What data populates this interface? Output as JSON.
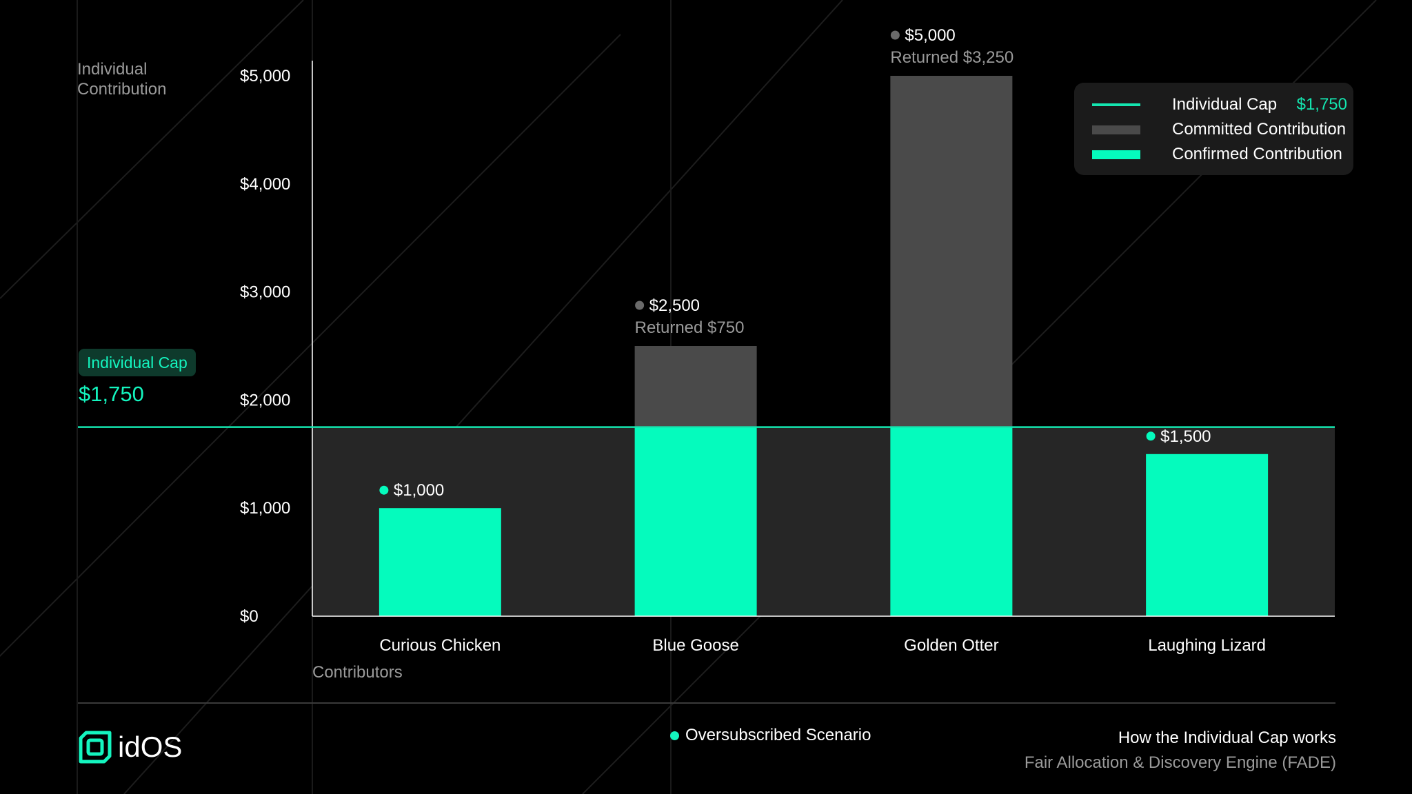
{
  "chart_data": {
    "type": "bar",
    "title": "How the Individual Cap works",
    "subtitle": "Fair Allocation & Discovery Engine (FADE)",
    "xlabel": "Contributors",
    "ylabel": "Individual Contribution",
    "ylim": [
      0,
      5000
    ],
    "ytick_values": [
      0,
      1000,
      2000,
      3000,
      4000,
      5000
    ],
    "ytick_labels": [
      "$0",
      "$1,000",
      "$2,000",
      "$3,000",
      "$4,000",
      "$5,000"
    ],
    "categories": [
      "Curious Chicken",
      "Blue Goose",
      "Golden Otter",
      "Laughing Lizard"
    ],
    "series": [
      {
        "name": "Committed Contribution",
        "values": [
          1000,
          2500,
          5000,
          1500
        ]
      },
      {
        "name": "Confirmed Contribution",
        "values": [
          1000,
          1750,
          1750,
          1500
        ]
      }
    ],
    "cap": {
      "name": "Individual Cap",
      "value": 1750,
      "label": "$1,750"
    },
    "bar_labels": [
      {
        "amount": "$1,000",
        "note": ""
      },
      {
        "amount": "$2,500",
        "note": "Returned $750"
      },
      {
        "amount": "$5,000",
        "note": "Returned $3,250"
      },
      {
        "amount": "$1,500",
        "note": ""
      }
    ],
    "colors": {
      "committed": "#4a4a4a",
      "confirmed": "#05fbbd",
      "cap": "#14e6b0",
      "below_cap_fill": "#262626",
      "axis": "#ffffff",
      "tick_text": "#ffffff",
      "muted_text": "#9a9a9a"
    }
  },
  "legend": {
    "items": [
      {
        "label": "Individual Cap",
        "value": "$1,750",
        "kind": "line",
        "color": "#14e6b0"
      },
      {
        "label": "Committed Contribution",
        "value": "",
        "kind": "swatch",
        "color": "#4a4a4a"
      },
      {
        "label": "Confirmed Contribution",
        "value": "",
        "kind": "swatch",
        "color": "#05fbbd"
      }
    ]
  },
  "cap_callout": {
    "badge": "Individual Cap",
    "value": "$1,750"
  },
  "footer": {
    "logo_text": "idOS",
    "scenario": "Oversubscribed Scenario",
    "title": "How the Individual Cap works",
    "subtitle": "Fair Allocation & Discovery Engine (FADE)"
  }
}
